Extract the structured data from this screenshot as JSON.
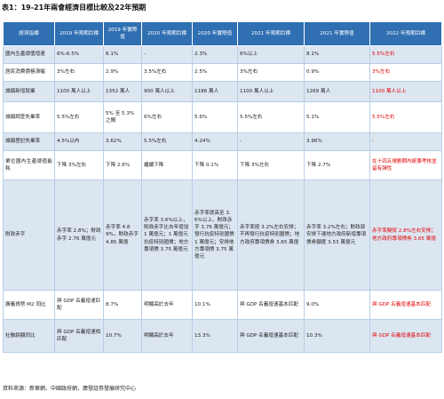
{
  "title": "表1：19-21年兩會經濟目標比較及22年預期",
  "headers": [
    "經濟指標",
    "2019 年預期目標",
    "2019 年實際值",
    "2020 年預期目標",
    "2020 年實際值",
    "2021 年預期目標",
    "2021 年實際值",
    "2022 年預期目標"
  ],
  "rows": [
    [
      "國內生產總值增速",
      "6%-6.5%",
      "6.1%",
      "-",
      "2.3%",
      "6%以上",
      "8.1%",
      "5.5%左右"
    ],
    [
      "居民消費價格漲幅",
      "3%左右",
      "2.9%",
      "3.5%左右",
      "2.5%",
      "3%左右",
      "0.9%",
      "3%左右"
    ],
    [
      "城鎮新增就業",
      "1100 萬人以上",
      "1352 萬人",
      "900 萬人以上",
      "1186 萬人",
      "1100 萬人以上",
      "1269 萬人",
      "1100 萬人以上"
    ],
    [
      "城鎮調查失業率",
      "5.5%左右",
      "5% 至 5.3% 之間",
      "6%左右",
      "5.6%",
      "5.5%左右",
      "5.1%",
      "5.5%左右"
    ],
    [
      "城鎮登記失業率",
      "4.5%以內",
      "3.62%",
      "5.5%左右",
      "4.24%",
      "-",
      "3.96%",
      "-"
    ],
    [
      "單位國內生產總值能耗",
      "下降 3%左右",
      "下降 2.6%",
      "繼續下降",
      "下降 0.1%",
      "下降 3%左右",
      "下降 2.7%",
      "在十四五規劃期內統籌考核並留有彈性"
    ],
    [
      "財政赤字",
      "赤字率 2.8%；財政赤字 2.76 萬億元",
      "赤字率 4.89%，財政赤字 4.85 萬億",
      "赤字率 3.6%以上，財政赤字比去年增加 1 萬億元；1 萬億元抗疫特別國債；地方專項債 3.75 萬億元",
      "赤字率提高至 3.6%以上，財政赤字 3.76 萬億元；發行抗疫特別國債 1 萬億元；安排地方專項債 3.75 萬億元",
      "赤字率按 3.2%左右安排；不再發行抗疫特別國債；地方政府專項債券 3.65 萬億",
      "赤字率 3.2%左右；財政部安排下達地方政府新增專項債券額度 3.53 萬億元",
      "赤字率擬按 2.8%左右安排；地方政府專項債券 3.65 萬億"
    ],
    [
      "廣義貨幣 M2 同比",
      "與 GDP 名義增速匹配",
      "8.7%",
      "明顯高於去年",
      "10.1%",
      "與 GDP 名義增速基本匹配",
      "9.0%",
      "與 GDP 名義增速基本匹配"
    ],
    [
      "社融餘額同比",
      "與 GDP 名義增速相匹配",
      "10.7%",
      "明顯高於去年",
      "13.3%",
      "與 GDP 名義增速基本匹配",
      "10.3%",
      "與 GDP 名義增速基本匹配"
    ]
  ],
  "source": "資料來源：新華網、中國政府網，廣發証券發展研究中心",
  "colors": {
    "header_bg": "#2f6fb2",
    "band_bg": "#dce6f1",
    "highlight": "#e00000"
  }
}
